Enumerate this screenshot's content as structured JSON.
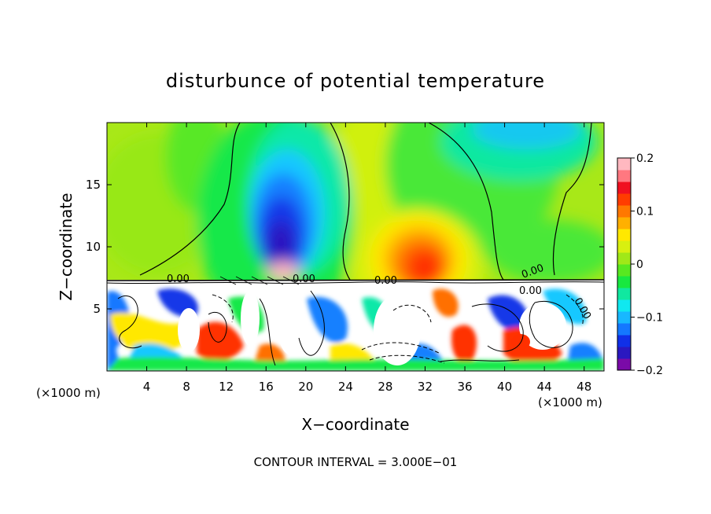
{
  "chart_data": {
    "type": "heatmap",
    "title": "disturbunce of potential temperature",
    "xlabel": "X−coordinate",
    "ylabel": "Z−coordinate",
    "x_unit_left": "(×1000 m)",
    "x_unit_right": "(×1000 m)",
    "xlim": [
      0,
      50
    ],
    "ylim": [
      0,
      20
    ],
    "x_ticks": [
      4,
      8,
      12,
      16,
      20,
      24,
      28,
      32,
      36,
      40,
      44,
      48
    ],
    "x_tick_labels": [
      "4",
      "8",
      "12",
      "16",
      "20",
      "24",
      "28",
      "32",
      "36",
      "40",
      "44",
      "48"
    ],
    "y_ticks": [
      5,
      10,
      15
    ],
    "y_tick_labels": [
      "5",
      "10",
      "15"
    ],
    "colorbar": {
      "range": [
        -0.2,
        0.2
      ],
      "ticks": [
        0.2,
        0.1,
        0,
        -0.1,
        -0.2
      ],
      "tick_labels": [
        "0.2",
        "0.1",
        "0",
        "−0.1",
        "−0.2"
      ],
      "colors": [
        "#7a0aa8",
        "#2a18c0",
        "#1030e8",
        "#1478ff",
        "#18b8ff",
        "#10e8f0",
        "#10e8a0",
        "#18e840",
        "#58e820",
        "#a0e818",
        "#d8f010",
        "#ffe800",
        "#ffb000",
        "#ff7800",
        "#ff3c00",
        "#f01020",
        "#ff7880",
        "#ffb8c0"
      ]
    },
    "contour_labels": [
      "0.00",
      "0.00",
      "0.00",
      "0.00",
      "0.00",
      "0.00"
    ],
    "contour_interval_text": "CONTOUR INTERVAL = 3.000E−01",
    "features": [
      {
        "x": 17.5,
        "z": 11,
        "value": -0.2
      },
      {
        "x": 31,
        "z": 8.5,
        "value": 0.15
      },
      {
        "x": 43,
        "z": 2.5,
        "value": 0.15
      },
      {
        "x": 43,
        "z": 19,
        "value": -0.08
      },
      {
        "x": 30,
        "z": 3.5,
        "value": 0.3
      }
    ]
  }
}
